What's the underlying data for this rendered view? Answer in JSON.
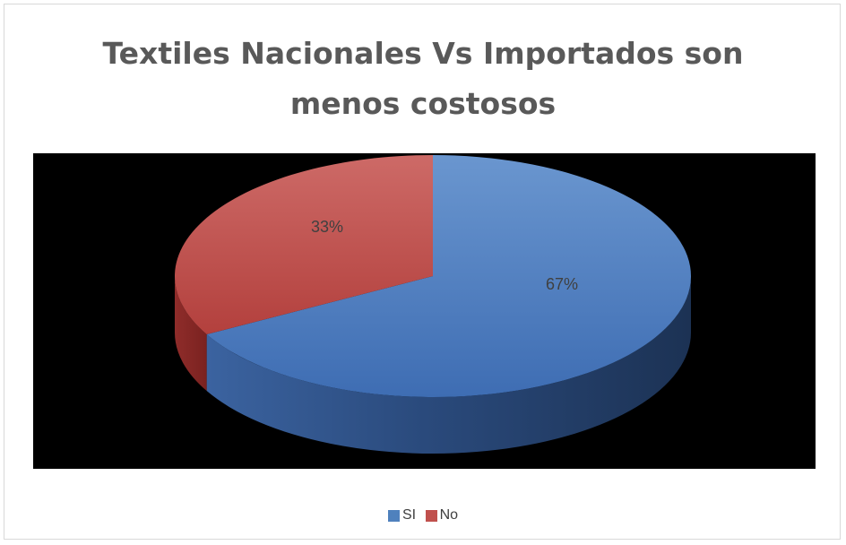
{
  "chart_data": {
    "type": "pie",
    "title": "Textiles Nacionales Vs Importados son menos costosos",
    "title_lines": [
      "Textiles Nacionales Vs Importados son",
      "menos costosos"
    ],
    "categories": [
      "SI",
      "No"
    ],
    "values": [
      67,
      33
    ],
    "data_labels": [
      "67%",
      "33%"
    ],
    "colors": [
      "#4f81bd",
      "#c0504d"
    ],
    "style": "3d",
    "legend_position": "bottom"
  }
}
